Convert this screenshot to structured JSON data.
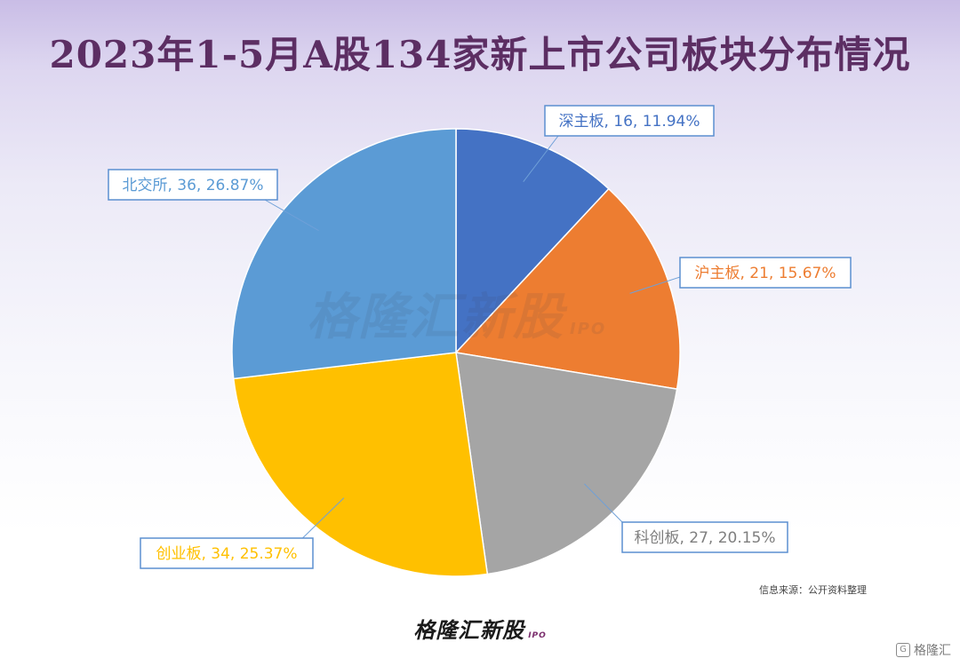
{
  "title": "2023年1-5月A股134家新上市公司板块分布情况",
  "watermark": {
    "main": "格隆汇新股",
    "sub": "IPO"
  },
  "source_note": "信息来源：公开资料整理",
  "footer_brand": {
    "main": "格隆汇新股",
    "sub": "IPO"
  },
  "corner_logo": {
    "icon": "G",
    "text": "格隆汇"
  },
  "chart_data": {
    "type": "pie",
    "title": "2023年1-5月A股134家新上市公司板块分布情况",
    "total": 134,
    "slices": [
      {
        "name": "深主板",
        "value": 16,
        "percent": "11.94%",
        "color": "#4472c4",
        "label": "深主板, 16, 11.94%"
      },
      {
        "name": "沪主板",
        "value": 21,
        "percent": "15.67%",
        "color": "#ed7d31",
        "label": "沪主板, 21, 15.67%"
      },
      {
        "name": "科创板",
        "value": 27,
        "percent": "20.15%",
        "color": "#a5a5a5",
        "label": "科创板, 27, 20.15%"
      },
      {
        "name": "创业板",
        "value": 34,
        "percent": "25.37%",
        "color": "#ffc000",
        "label": "创业板, 34, 25.37%"
      },
      {
        "name": "北交所",
        "value": 36,
        "percent": "26.87%",
        "color": "#5b9bd5",
        "label": "北交所, 36, 26.87%"
      }
    ],
    "start_angle": "12 o'clock",
    "direction": "clockwise",
    "legend": "none"
  }
}
